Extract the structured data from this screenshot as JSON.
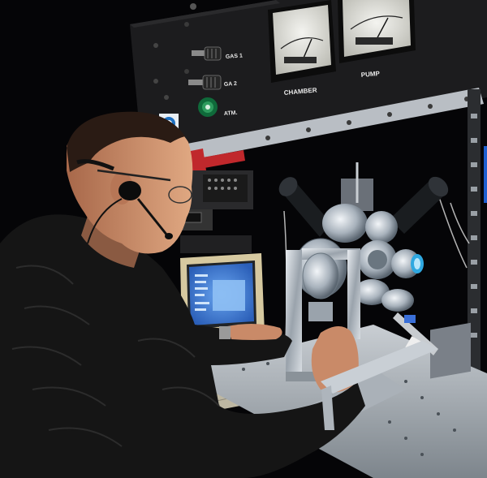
{
  "panel": {
    "gas1_label": "GAS 1",
    "gas2_label": "GA 2",
    "atm_label": "ATM.",
    "chamber_label": "CHAMBER",
    "pump_label": "PUMP"
  },
  "colors": {
    "rack_panel": "#1a1a1a",
    "steel_frame": "#b9bec4",
    "accent_red": "#c0282c",
    "lens_blue": "#2fa8e0",
    "crt_screen": "#3b7fd8",
    "crt_bezel": "#d6c9a0",
    "sweater": "#151515",
    "skin": "#c98a68"
  }
}
